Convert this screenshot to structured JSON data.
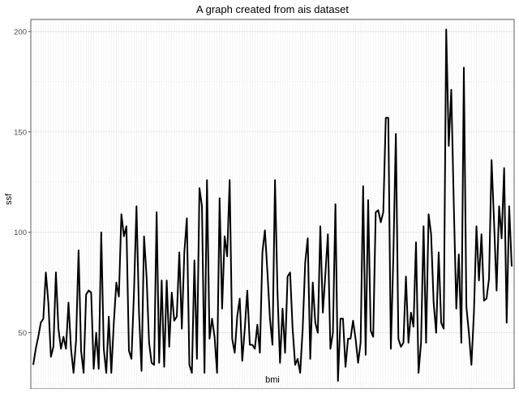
{
  "chart_data": {
    "type": "line",
    "title": "A graph created from ais dataset",
    "xlabel": "bmi",
    "ylabel": "ssf",
    "ylim": [
      22.0,
      206.0
    ],
    "yticks": [
      50,
      100,
      150,
      200
    ],
    "grid": true,
    "legend": "none",
    "x_tick_labels_overlapping": true,
    "series": [
      {
        "color": "#000000",
        "values": [
          34,
          42,
          48,
          55,
          57,
          80,
          65,
          38,
          43,
          80,
          52,
          42,
          48,
          42,
          65,
          42,
          30,
          46,
          91,
          41,
          30,
          69,
          71,
          70,
          32,
          50,
          32,
          100,
          42,
          30,
          58,
          30,
          55,
          75,
          68,
          109,
          98,
          103,
          41,
          37,
          70,
          113,
          60,
          31,
          98,
          78,
          45,
          35,
          34,
          110,
          35,
          76,
          33,
          76,
          43,
          70,
          56,
          58,
          90,
          52,
          90,
          107,
          34,
          30,
          86,
          37,
          122,
          113,
          30,
          126,
          47,
          57,
          48,
          30,
          117,
          62,
          98,
          88,
          126,
          47,
          40,
          58,
          67,
          36,
          52,
          71,
          44,
          44,
          42,
          54,
          40,
          90,
          101,
          80,
          57,
          44,
          126,
          70,
          35,
          62,
          40,
          78,
          80,
          52,
          34,
          37,
          30,
          52,
          85,
          97,
          37,
          75,
          55,
          50,
          103,
          60,
          79,
          99,
          42,
          50,
          114,
          26,
          57,
          57,
          33,
          47,
          47,
          56,
          47,
          35,
          45,
          123,
          39,
          116,
          51,
          48,
          110,
          111,
          105,
          110,
          157,
          157,
          42,
          88,
          149,
          47,
          43,
          45,
          78,
          45,
          60,
          53,
          95,
          30,
          45,
          103,
          45,
          109,
          99,
          65,
          50,
          90,
          55,
          52,
          201,
          143,
          171,
          114,
          62,
          89,
          45,
          182,
          63,
          50,
          34,
          60,
          103,
          76,
          99,
          66,
          67,
          77,
          136,
          105,
          71,
          113,
          97,
          132,
          55,
          113,
          83
        ]
      }
    ]
  }
}
